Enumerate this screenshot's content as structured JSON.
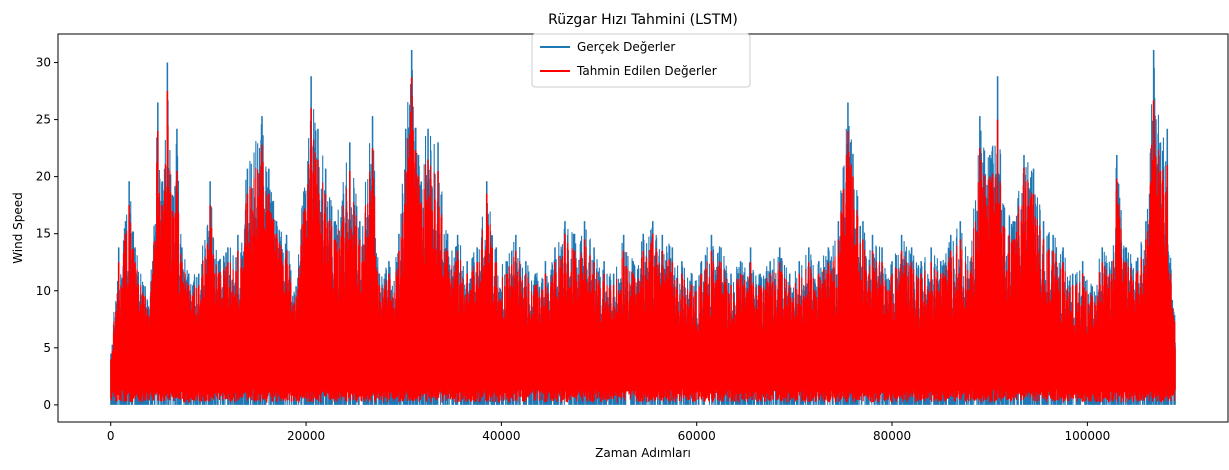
{
  "chart_data": {
    "type": "line",
    "title": "Rüzgar Hızı Tahmini (LSTM)",
    "xlabel": "Zaman Adımları",
    "ylabel": "Wind Speed",
    "xlim": [
      -5400,
      114400
    ],
    "ylim": [
      -1.5,
      32.5
    ],
    "xticks": [
      0,
      20000,
      40000,
      60000,
      80000,
      100000
    ],
    "yticks": [
      0,
      5,
      10,
      15,
      20,
      25,
      30
    ],
    "grid": false,
    "legend_position": "top-center",
    "n_points": 109000,
    "series": [
      {
        "name": "Gerçek Değerler",
        "color": "#1f77b4",
        "peaks": [
          [
            0,
            4.5
          ],
          [
            800,
            13.8
          ],
          [
            1500,
            16.1
          ],
          [
            1900,
            19.6
          ],
          [
            2500,
            13.8
          ],
          [
            3500,
            10.4
          ],
          [
            4300,
            12.6
          ],
          [
            4800,
            26.5
          ],
          [
            5300,
            19.6
          ],
          [
            5800,
            30.0
          ],
          [
            6300,
            18.4
          ],
          [
            6800,
            24.2
          ],
          [
            7300,
            13.8
          ],
          [
            8000,
            11.5
          ],
          [
            9000,
            11.5
          ],
          [
            10200,
            19.6
          ],
          [
            11000,
            12.6
          ],
          [
            12000,
            13.8
          ],
          [
            13000,
            14.9
          ],
          [
            14000,
            20.7
          ],
          [
            15500,
            25.3
          ],
          [
            16200,
            20.7
          ],
          [
            17000,
            16.1
          ],
          [
            18000,
            14.9
          ],
          [
            19000,
            10.4
          ],
          [
            20500,
            28.8
          ],
          [
            21200,
            24.2
          ],
          [
            22000,
            20.7
          ],
          [
            23000,
            16.1
          ],
          [
            24500,
            23.0
          ],
          [
            25500,
            16.1
          ],
          [
            26800,
            25.3
          ],
          [
            27500,
            11.5
          ],
          [
            28500,
            12.6
          ],
          [
            29500,
            15.0
          ],
          [
            30200,
            24.2
          ],
          [
            30800,
            31.1
          ],
          [
            31500,
            21.9
          ],
          [
            32500,
            24.2
          ],
          [
            33500,
            23.0
          ],
          [
            34500,
            15.0
          ],
          [
            35500,
            14.9
          ],
          [
            36500,
            12.6
          ],
          [
            37500,
            13.8
          ],
          [
            38500,
            19.6
          ],
          [
            39500,
            13.8
          ],
          [
            40500,
            12.6
          ],
          [
            41500,
            14.9
          ],
          [
            42500,
            12.6
          ],
          [
            43500,
            11.5
          ],
          [
            44500,
            12.6
          ],
          [
            45500,
            13.8
          ],
          [
            46500,
            16.1
          ],
          [
            47500,
            15.0
          ],
          [
            48500,
            16.1
          ],
          [
            49500,
            13.8
          ],
          [
            50500,
            12.6
          ],
          [
            51500,
            11.5
          ],
          [
            52500,
            14.9
          ],
          [
            53500,
            12.6
          ],
          [
            54500,
            15.0
          ],
          [
            55500,
            16.1
          ],
          [
            56500,
            14.9
          ],
          [
            57500,
            13.8
          ],
          [
            58500,
            12.6
          ],
          [
            59500,
            11.5
          ],
          [
            60500,
            12.6
          ],
          [
            61500,
            14.9
          ],
          [
            62500,
            13.8
          ],
          [
            63500,
            11.5
          ],
          [
            64500,
            12.6
          ],
          [
            65500,
            13.8
          ],
          [
            66500,
            11.5
          ],
          [
            67500,
            12.6
          ],
          [
            68500,
            13.8
          ],
          [
            69500,
            11.5
          ],
          [
            70500,
            12.6
          ],
          [
            71500,
            13.8
          ],
          [
            72500,
            12.6
          ],
          [
            73500,
            13.8
          ],
          [
            74500,
            16.1
          ],
          [
            75500,
            26.5
          ],
          [
            76000,
            22.0
          ],
          [
            77000,
            16.1
          ],
          [
            78000,
            14.9
          ],
          [
            79000,
            13.8
          ],
          [
            80000,
            12.6
          ],
          [
            81000,
            14.9
          ],
          [
            82000,
            13.8
          ],
          [
            83000,
            12.6
          ],
          [
            84000,
            13.8
          ],
          [
            85000,
            12.6
          ],
          [
            86000,
            14.9
          ],
          [
            87000,
            16.1
          ],
          [
            88000,
            12.6
          ],
          [
            89000,
            25.3
          ],
          [
            90000,
            21.9
          ],
          [
            90800,
            28.8
          ],
          [
            91500,
            17.3
          ],
          [
            92500,
            16.1
          ],
          [
            93500,
            21.9
          ],
          [
            94500,
            20.7
          ],
          [
            95500,
            16.1
          ],
          [
            96500,
            14.9
          ],
          [
            97500,
            13.8
          ],
          [
            98500,
            11.5
          ],
          [
            99500,
            12.6
          ],
          [
            100500,
            10.4
          ],
          [
            101500,
            13.8
          ],
          [
            102500,
            12.6
          ],
          [
            103000,
            21.9
          ],
          [
            104000,
            13.8
          ],
          [
            105000,
            12.6
          ],
          [
            106000,
            16.1
          ],
          [
            106800,
            31.1
          ],
          [
            107500,
            23.0
          ],
          [
            108200,
            24.2
          ],
          [
            108700,
            9.2
          ]
        ]
      },
      {
        "name": "Tahmin Edilen Değerler",
        "color": "#ff0000",
        "peaks": [
          [
            0,
            4.0
          ],
          [
            800,
            12.5
          ],
          [
            1500,
            15.0
          ],
          [
            1900,
            17.5
          ],
          [
            2500,
            12.5
          ],
          [
            3500,
            9.5
          ],
          [
            4300,
            11.5
          ],
          [
            4800,
            24.0
          ],
          [
            5300,
            17.5
          ],
          [
            5800,
            27.5
          ],
          [
            6300,
            17.0
          ],
          [
            6800,
            20.5
          ],
          [
            7300,
            12.5
          ],
          [
            8000,
            10.5
          ],
          [
            9000,
            10.5
          ],
          [
            10200,
            17.5
          ],
          [
            11000,
            11.5
          ],
          [
            12000,
            12.5
          ],
          [
            13000,
            13.5
          ],
          [
            14000,
            18.5
          ],
          [
            15500,
            22.8
          ],
          [
            16200,
            18.5
          ],
          [
            17000,
            15.0
          ],
          [
            18000,
            13.5
          ],
          [
            19000,
            9.5
          ],
          [
            20500,
            26.0
          ],
          [
            21200,
            21.5
          ],
          [
            22000,
            18.5
          ],
          [
            23000,
            14.5
          ],
          [
            24500,
            20.5
          ],
          [
            25500,
            14.5
          ],
          [
            26800,
            22.5
          ],
          [
            27500,
            10.5
          ],
          [
            28500,
            11.5
          ],
          [
            29500,
            13.5
          ],
          [
            30200,
            20.5
          ],
          [
            30800,
            28.7
          ],
          [
            31500,
            20.0
          ],
          [
            32500,
            21.5
          ],
          [
            33500,
            20.5
          ],
          [
            34500,
            13.5
          ],
          [
            35500,
            13.5
          ],
          [
            36500,
            11.5
          ],
          [
            37500,
            12.5
          ],
          [
            38500,
            18.5
          ],
          [
            39500,
            12.5
          ],
          [
            40500,
            11.5
          ],
          [
            41500,
            13.5
          ],
          [
            42500,
            11.5
          ],
          [
            43500,
            10.5
          ],
          [
            44500,
            11.5
          ],
          [
            45500,
            12.5
          ],
          [
            46500,
            15.0
          ],
          [
            47500,
            13.5
          ],
          [
            48500,
            14.5
          ],
          [
            49500,
            12.5
          ],
          [
            50500,
            11.5
          ],
          [
            51500,
            10.5
          ],
          [
            52500,
            13.5
          ],
          [
            53500,
            11.5
          ],
          [
            54500,
            13.5
          ],
          [
            55500,
            15.0
          ],
          [
            56500,
            13.5
          ],
          [
            57500,
            12.5
          ],
          [
            58500,
            11.5
          ],
          [
            59500,
            10.5
          ],
          [
            60500,
            11.5
          ],
          [
            61500,
            13.5
          ],
          [
            62500,
            12.5
          ],
          [
            63500,
            10.5
          ],
          [
            64500,
            11.5
          ],
          [
            65500,
            12.5
          ],
          [
            66500,
            10.5
          ],
          [
            67500,
            11.5
          ],
          [
            68500,
            12.5
          ],
          [
            69500,
            10.5
          ],
          [
            70500,
            11.5
          ],
          [
            71500,
            12.5
          ],
          [
            72500,
            11.5
          ],
          [
            73500,
            12.5
          ],
          [
            74500,
            14.5
          ],
          [
            75500,
            24.0
          ],
          [
            76000,
            20.0
          ],
          [
            77000,
            14.5
          ],
          [
            78000,
            13.5
          ],
          [
            79000,
            12.5
          ],
          [
            80000,
            11.5
          ],
          [
            81000,
            13.5
          ],
          [
            82000,
            12.5
          ],
          [
            83000,
            11.5
          ],
          [
            84000,
            12.5
          ],
          [
            85000,
            11.5
          ],
          [
            86000,
            13.5
          ],
          [
            87000,
            14.5
          ],
          [
            88000,
            11.5
          ],
          [
            89000,
            22.5
          ],
          [
            90000,
            20.0
          ],
          [
            90800,
            25.0
          ],
          [
            91500,
            15.5
          ],
          [
            92500,
            14.5
          ],
          [
            93500,
            20.8
          ],
          [
            94500,
            18.5
          ],
          [
            95500,
            14.5
          ],
          [
            96500,
            13.5
          ],
          [
            97500,
            12.5
          ],
          [
            98500,
            10.5
          ],
          [
            99500,
            11.5
          ],
          [
            100500,
            9.5
          ],
          [
            101500,
            12.5
          ],
          [
            102500,
            11.5
          ],
          [
            103000,
            19.8
          ],
          [
            104000,
            12.5
          ],
          [
            105000,
            11.5
          ],
          [
            106000,
            14.5
          ],
          [
            106800,
            26.7
          ],
          [
            107500,
            20.5
          ],
          [
            108200,
            21.0
          ],
          [
            108700,
            8.5
          ]
        ]
      }
    ]
  }
}
